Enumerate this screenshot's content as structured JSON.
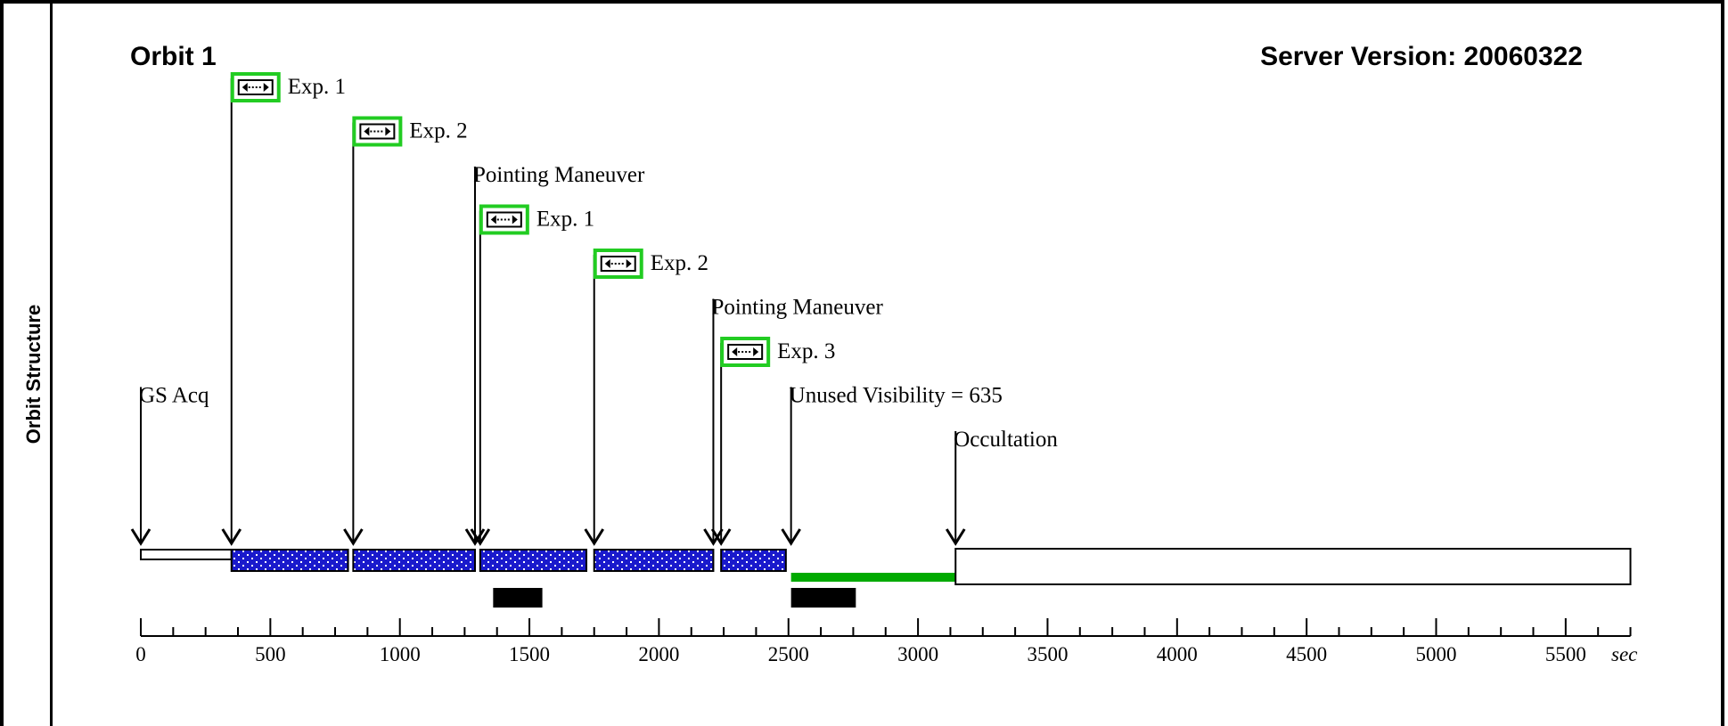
{
  "side_label": "Orbit Structure",
  "orbit_title": "Orbit 1",
  "server_version": "Server Version: 20060322",
  "axis": {
    "min": 0,
    "max": 5750,
    "unit": "sec",
    "major_ticks": [
      0,
      500,
      1000,
      1500,
      2000,
      2500,
      3000,
      3500,
      4000,
      4500,
      5000,
      5500
    ],
    "minor_step": 125
  },
  "events": [
    {
      "time": 0,
      "label": "GS Acq",
      "label_row": 7
    },
    {
      "time": 350,
      "label": "Exp. 1",
      "label_row": 0,
      "exposure_icon": true
    },
    {
      "time": 820,
      "label": "Exp. 2",
      "label_row": 1,
      "exposure_icon": true
    },
    {
      "time": 1290,
      "label": "Pointing Maneuver",
      "label_row": 2
    },
    {
      "time": 1310,
      "label": "Exp. 1",
      "label_row": 3,
      "exposure_icon": true
    },
    {
      "time": 1750,
      "label": "Exp. 2",
      "label_row": 4,
      "exposure_icon": true
    },
    {
      "time": 2210,
      "label": "Pointing Maneuver",
      "label_row": 5
    },
    {
      "time": 2240,
      "label": "Exp. 3",
      "label_row": 6,
      "exposure_icon": true
    },
    {
      "time": 2510,
      "label": "Unused Visibility = 635",
      "label_row": 7
    },
    {
      "time": 3145,
      "label": "Occultation",
      "label_row": 8
    }
  ],
  "segments": [
    {
      "kind": "acquisition",
      "start": 0,
      "end": 350
    },
    {
      "kind": "exposure",
      "start": 350,
      "end": 800
    },
    {
      "kind": "exposure",
      "start": 820,
      "end": 1290
    },
    {
      "kind": "exposure",
      "start": 1310,
      "end": 1720
    },
    {
      "kind": "exposure",
      "start": 1750,
      "end": 2210
    },
    {
      "kind": "exposure",
      "start": 2240,
      "end": 2490
    },
    {
      "kind": "unused",
      "start": 2510,
      "end": 3145
    },
    {
      "kind": "occultation",
      "start": 3145,
      "end": 5750
    }
  ],
  "black_bars": [
    {
      "start": 1360,
      "end": 1550
    },
    {
      "start": 2510,
      "end": 2760
    }
  ],
  "colors": {
    "exposure_fill": "#1a1acc",
    "exposure_dots": "#ffffff",
    "unused_visibility": "#00aa00",
    "exposure_icon_border": "#22cc22",
    "line": "#000000"
  }
}
